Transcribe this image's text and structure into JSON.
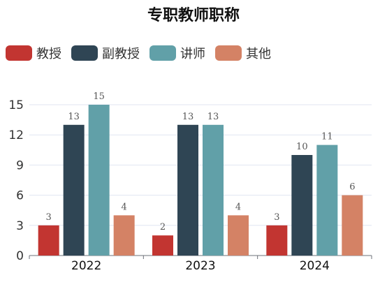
{
  "chart_data": {
    "type": "bar",
    "title": "专职教师职称",
    "categories": [
      "2022",
      "2023",
      "2024"
    ],
    "series": [
      {
        "name": "教授",
        "values": [
          3,
          2,
          3
        ],
        "color": "#c23531"
      },
      {
        "name": "副教授",
        "values": [
          13,
          13,
          10
        ],
        "color": "#2f4554"
      },
      {
        "name": "讲师",
        "values": [
          15,
          13,
          11
        ],
        "color": "#61a0a8"
      },
      {
        "name": "其他",
        "values": [
          4,
          4,
          6
        ],
        "color": "#d48265"
      }
    ],
    "y_ticks": [
      "0",
      "3",
      "6",
      "9",
      "12",
      "15"
    ],
    "ylim": [
      0,
      15
    ],
    "xlabel": "",
    "ylabel": "",
    "grid": true,
    "legend_position": "top-left"
  }
}
